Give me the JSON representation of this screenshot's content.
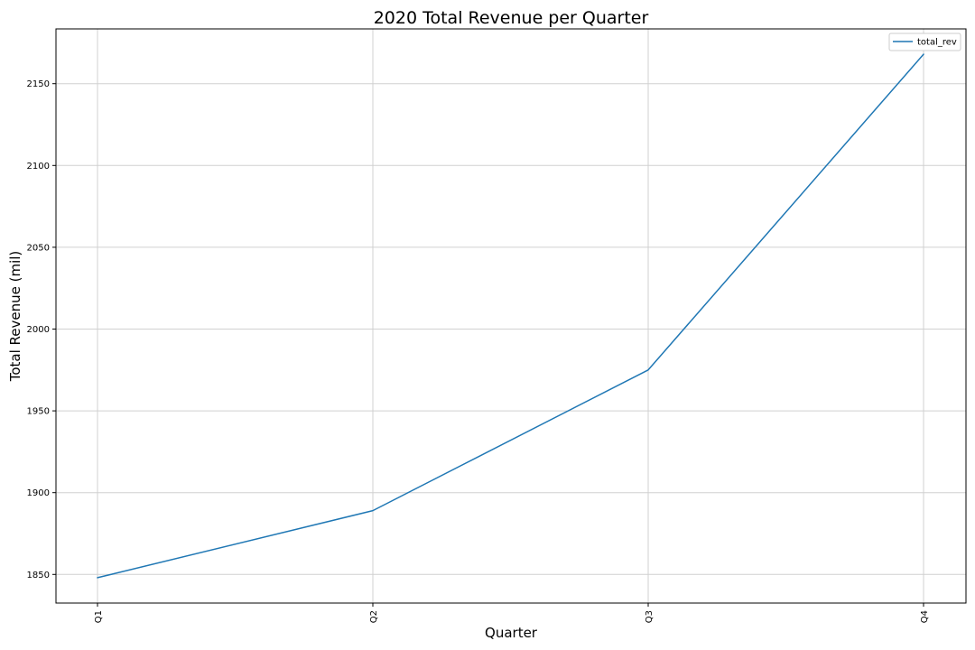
{
  "chart_data": {
    "type": "line",
    "title": "2020 Total Revenue per Quarter",
    "xlabel": "Quarter",
    "ylabel": "Total Revenue (mil)",
    "categories": [
      "Q1",
      "Q2",
      "Q3",
      "Q4"
    ],
    "series": [
      {
        "name": "total_rev",
        "color": "#1f77b4",
        "values": [
          1848,
          1889,
          1975,
          2168
        ]
      }
    ],
    "yticks": [
      1850,
      1900,
      1950,
      2000,
      2050,
      2100,
      2150
    ],
    "ylim": [
      1832.5,
      2183.5
    ],
    "grid": true,
    "legend_position": "top-right"
  }
}
